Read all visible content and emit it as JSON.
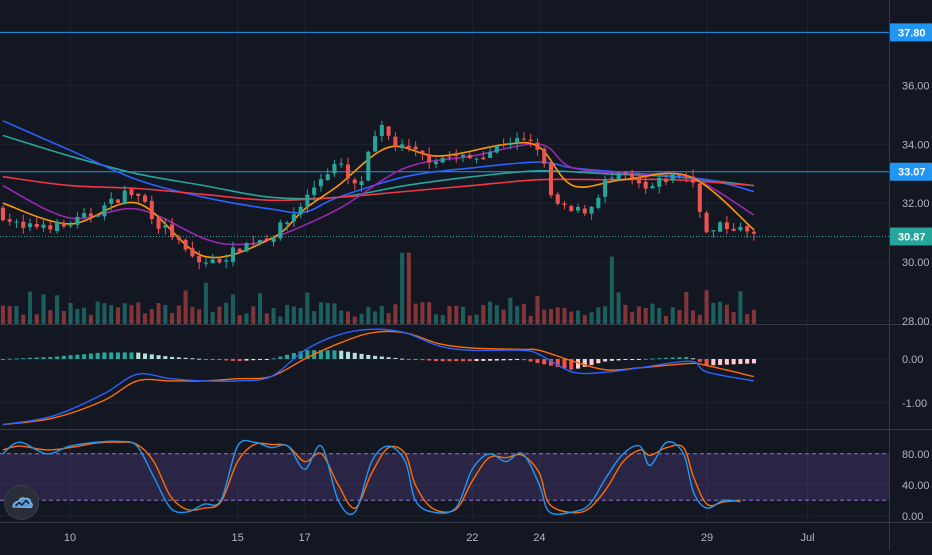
{
  "chart_data": {
    "type": "candlestick-with-indicators",
    "time_axis": {
      "labels": [
        {
          "text": "10",
          "day": 10
        },
        {
          "text": "15",
          "day": 15
        },
        {
          "text": "17",
          "day": 17
        },
        {
          "text": "22",
          "day": 22
        },
        {
          "text": "24",
          "day": 24
        },
        {
          "text": "29",
          "day": 29
        },
        {
          "text": "Jul",
          "day": 32
        }
      ]
    },
    "price_pane": {
      "ylim": [
        27.9,
        38.9
      ],
      "ticks": [
        "28.00",
        "30.00",
        "32.00",
        "34.00",
        "36.00"
      ],
      "horizontal_levels": [
        {
          "value": 37.8,
          "label": "37.80",
          "color": "#2196f3"
        },
        {
          "value": 33.07,
          "label": "33.07",
          "color": "#2196f3"
        }
      ],
      "last_price": {
        "value": 30.87,
        "label": "30.87",
        "color": "#26a69a"
      },
      "candles_start_day": 8.0,
      "candles_end_day": 30.4,
      "close_path": [
        [
          8.0,
          31.6
        ],
        [
          8.6,
          31.1
        ],
        [
          9.2,
          31.3
        ],
        [
          9.8,
          31.2
        ],
        [
          10.6,
          31.6
        ],
        [
          11.2,
          32.0
        ],
        [
          11.7,
          32.4
        ],
        [
          12.2,
          32.1
        ],
        [
          12.6,
          31.3
        ],
        [
          13.0,
          31.0
        ],
        [
          13.4,
          30.4
        ],
        [
          13.8,
          30.0
        ],
        [
          14.3,
          30.0
        ],
        [
          14.8,
          30.3
        ],
        [
          15.4,
          30.7
        ],
        [
          16.0,
          30.9
        ],
        [
          16.5,
          31.4
        ],
        [
          17.0,
          32.1
        ],
        [
          17.5,
          32.9
        ],
        [
          18.0,
          33.4
        ],
        [
          18.3,
          32.8
        ],
        [
          18.6,
          32.4
        ],
        [
          19.0,
          34.0
        ],
        [
          19.3,
          34.5
        ],
        [
          19.8,
          33.9
        ],
        [
          20.3,
          33.7
        ],
        [
          20.8,
          33.5
        ],
        [
          21.4,
          33.6
        ],
        [
          22.0,
          33.5
        ],
        [
          22.6,
          33.8
        ],
        [
          23.0,
          34.1
        ],
        [
          23.5,
          34.1
        ],
        [
          24.0,
          33.9
        ],
        [
          24.4,
          32.0
        ],
        [
          24.9,
          31.7
        ],
        [
          25.5,
          31.8
        ],
        [
          26.0,
          32.8
        ],
        [
          26.6,
          32.9
        ],
        [
          27.2,
          32.4
        ],
        [
          27.7,
          32.8
        ],
        [
          28.2,
          33.0
        ],
        [
          28.6,
          32.7
        ],
        [
          29.0,
          30.9
        ],
        [
          29.4,
          31.2
        ],
        [
          29.8,
          31.2
        ],
        [
          30.4,
          30.9
        ]
      ],
      "moving_averages": [
        {
          "color": "#26a69a",
          "points": [
            [
              8.0,
              34.3
            ],
            [
              10.0,
              33.6
            ],
            [
              12.0,
              33.0
            ],
            [
              14.0,
              32.6
            ],
            [
              16.0,
              32.2
            ],
            [
              18.0,
              32.2
            ],
            [
              20.0,
              32.6
            ],
            [
              22.0,
              32.9
            ],
            [
              24.0,
              33.1
            ],
            [
              26.0,
              33.0
            ],
            [
              28.0,
              32.9
            ],
            [
              30.4,
              32.6
            ]
          ]
        },
        {
          "color": "#2962ff",
          "points": [
            [
              8.0,
              34.8
            ],
            [
              10.0,
              33.8
            ],
            [
              12.0,
              32.8
            ],
            [
              14.0,
              32.2
            ],
            [
              16.0,
              31.8
            ],
            [
              17.0,
              31.7
            ],
            [
              18.0,
              32.2
            ],
            [
              20.0,
              32.9
            ],
            [
              22.0,
              33.2
            ],
            [
              24.0,
              33.4
            ],
            [
              25.0,
              33.2
            ],
            [
              27.0,
              33.0
            ],
            [
              29.0,
              32.8
            ],
            [
              30.4,
              32.4
            ]
          ]
        },
        {
          "color": "#f23645",
          "points": [
            [
              8.0,
              32.9
            ],
            [
              10.0,
              32.6
            ],
            [
              12.0,
              32.5
            ],
            [
              14.0,
              32.3
            ],
            [
              16.0,
              32.1
            ],
            [
              18.0,
              32.2
            ],
            [
              20.0,
              32.4
            ],
            [
              22.0,
              32.6
            ],
            [
              24.0,
              32.8
            ],
            [
              26.0,
              32.8
            ],
            [
              28.0,
              32.8
            ],
            [
              30.4,
              32.6
            ]
          ]
        },
        {
          "color": "#9c27b0",
          "points": [
            [
              8.0,
              32.6
            ],
            [
              10.0,
              31.5
            ],
            [
              12.0,
              31.8
            ],
            [
              14.0,
              30.8
            ],
            [
              15.0,
              30.6
            ],
            [
              16.0,
              30.8
            ],
            [
              18.0,
              31.8
            ],
            [
              20.0,
              33.2
            ],
            [
              22.0,
              33.6
            ],
            [
              24.0,
              34.0
            ],
            [
              25.0,
              33.2
            ],
            [
              27.0,
              33.0
            ],
            [
              28.5,
              32.9
            ],
            [
              30.4,
              31.6
            ]
          ]
        },
        {
          "color": "#ff9800",
          "points": [
            [
              8.0,
              32.0
            ],
            [
              10.0,
              31.3
            ],
            [
              12.0,
              32.0
            ],
            [
              14.0,
              30.2
            ],
            [
              16.0,
              30.8
            ],
            [
              17.0,
              31.8
            ],
            [
              18.0,
              32.6
            ],
            [
              19.5,
              33.9
            ],
            [
              21.0,
              33.6
            ],
            [
              23.0,
              34.0
            ],
            [
              24.0,
              33.9
            ],
            [
              25.0,
              32.6
            ],
            [
              26.5,
              32.8
            ],
            [
              28.5,
              32.9
            ],
            [
              30.4,
              31.1
            ]
          ]
        }
      ],
      "volume_spikes": [
        [
          14.0,
          0.55
        ],
        [
          20.0,
          0.95
        ],
        [
          26.2,
          0.9
        ],
        [
          29.0,
          0.45
        ]
      ]
    },
    "macd_pane": {
      "ylim": [
        -1.6,
        0.8
      ],
      "ticks": [
        "0.00",
        "-1.00"
      ],
      "macd_line": {
        "color": "#2962ff",
        "points": [
          [
            8.0,
            -1.5
          ],
          [
            9.5,
            -1.3
          ],
          [
            11.0,
            -0.8
          ],
          [
            12.0,
            -0.35
          ],
          [
            13.0,
            -0.45
          ],
          [
            14.0,
            -0.5
          ],
          [
            15.0,
            -0.5
          ],
          [
            16.0,
            -0.4
          ],
          [
            17.0,
            0.2
          ],
          [
            18.0,
            0.55
          ],
          [
            19.0,
            0.68
          ],
          [
            20.0,
            0.6
          ],
          [
            21.0,
            0.3
          ],
          [
            22.0,
            0.2
          ],
          [
            23.5,
            0.2
          ],
          [
            24.0,
            0.1
          ],
          [
            25.0,
            -0.3
          ],
          [
            26.0,
            -0.3
          ],
          [
            27.0,
            -0.2
          ],
          [
            28.5,
            -0.05
          ],
          [
            29.0,
            -0.3
          ],
          [
            30.4,
            -0.5
          ]
        ]
      },
      "signal_line": {
        "color": "#ff6d00",
        "points": [
          [
            8.0,
            -1.5
          ],
          [
            9.5,
            -1.35
          ],
          [
            11.0,
            -0.95
          ],
          [
            12.0,
            -0.5
          ],
          [
            13.0,
            -0.5
          ],
          [
            14.0,
            -0.5
          ],
          [
            15.0,
            -0.45
          ],
          [
            16.0,
            -0.4
          ],
          [
            17.0,
            0.0
          ],
          [
            18.0,
            0.35
          ],
          [
            19.0,
            0.6
          ],
          [
            20.0,
            0.6
          ],
          [
            21.0,
            0.35
          ],
          [
            22.0,
            0.25
          ],
          [
            23.5,
            0.22
          ],
          [
            24.0,
            0.2
          ],
          [
            25.0,
            -0.05
          ],
          [
            26.0,
            -0.25
          ],
          [
            27.0,
            -0.2
          ],
          [
            28.5,
            -0.1
          ],
          [
            29.0,
            -0.15
          ],
          [
            30.4,
            -0.4
          ]
        ]
      }
    },
    "stoch_pane": {
      "ylim": [
        -8,
        112
      ],
      "ticks": [
        "80.00",
        "40.00",
        "0.00"
      ],
      "band": [
        20,
        80
      ],
      "k_line": {
        "color": "#2196f3",
        "points": [
          [
            8.0,
            80
          ],
          [
            8.5,
            95
          ],
          [
            9.3,
            80
          ],
          [
            10.0,
            90
          ],
          [
            10.8,
            95
          ],
          [
            11.5,
            96
          ],
          [
            12.0,
            90
          ],
          [
            12.5,
            50
          ],
          [
            13.0,
            10
          ],
          [
            13.5,
            5
          ],
          [
            14.0,
            15
          ],
          [
            14.5,
            20
          ],
          [
            15.0,
            90
          ],
          [
            15.5,
            95
          ],
          [
            16.0,
            88
          ],
          [
            16.5,
            90
          ],
          [
            17.0,
            60
          ],
          [
            17.5,
            90
          ],
          [
            18.0,
            20
          ],
          [
            18.5,
            5
          ],
          [
            19.0,
            70
          ],
          [
            19.5,
            90
          ],
          [
            20.0,
            70
          ],
          [
            20.3,
            20
          ],
          [
            20.8,
            5
          ],
          [
            21.5,
            10
          ],
          [
            22.0,
            60
          ],
          [
            22.5,
            80
          ],
          [
            23.0,
            70
          ],
          [
            23.5,
            80
          ],
          [
            24.0,
            40
          ],
          [
            24.3,
            5
          ],
          [
            25.0,
            5
          ],
          [
            25.5,
            15
          ],
          [
            26.0,
            50
          ],
          [
            26.5,
            80
          ],
          [
            27.0,
            90
          ],
          [
            27.3,
            65
          ],
          [
            27.8,
            95
          ],
          [
            28.3,
            80
          ],
          [
            28.6,
            30
          ],
          [
            29.0,
            10
          ],
          [
            29.5,
            20
          ],
          [
            30.0,
            18
          ]
        ]
      },
      "d_line": {
        "color": "#ff6d00",
        "points": [
          [
            8.0,
            85
          ],
          [
            8.5,
            90
          ],
          [
            9.3,
            85
          ],
          [
            10.0,
            88
          ],
          [
            10.8,
            94
          ],
          [
            11.5,
            95
          ],
          [
            12.0,
            92
          ],
          [
            12.5,
            70
          ],
          [
            13.0,
            25
          ],
          [
            13.5,
            8
          ],
          [
            14.0,
            10
          ],
          [
            14.5,
            18
          ],
          [
            15.0,
            70
          ],
          [
            15.5,
            92
          ],
          [
            16.0,
            92
          ],
          [
            16.5,
            90
          ],
          [
            17.0,
            70
          ],
          [
            17.5,
            80
          ],
          [
            18.0,
            40
          ],
          [
            18.5,
            10
          ],
          [
            19.0,
            55
          ],
          [
            19.5,
            88
          ],
          [
            20.0,
            80
          ],
          [
            20.3,
            40
          ],
          [
            20.8,
            10
          ],
          [
            21.5,
            8
          ],
          [
            22.0,
            45
          ],
          [
            22.5,
            75
          ],
          [
            23.0,
            75
          ],
          [
            23.5,
            78
          ],
          [
            24.0,
            55
          ],
          [
            24.3,
            15
          ],
          [
            25.0,
            4
          ],
          [
            25.5,
            10
          ],
          [
            26.0,
            35
          ],
          [
            26.5,
            70
          ],
          [
            27.0,
            85
          ],
          [
            27.3,
            78
          ],
          [
            27.8,
            88
          ],
          [
            28.3,
            88
          ],
          [
            28.6,
            50
          ],
          [
            29.0,
            15
          ],
          [
            29.5,
            18
          ],
          [
            30.0,
            20
          ]
        ]
      }
    }
  },
  "chart_colors": {
    "background": "#131722",
    "grid": "#1f2330",
    "pane_border": "#363a45",
    "axis_text": "#b2b5be",
    "bull": "#26a69a",
    "bear": "#ef5350",
    "histogram_up": "#26a69a",
    "histogram_up_light": "#b2dfdb",
    "histogram_down": "#ef5350",
    "histogram_down_light": "#ffcdd2",
    "stoch_band": "#7e57c2"
  },
  "logo": {
    "icon": "tradingview-cloud-icon"
  }
}
